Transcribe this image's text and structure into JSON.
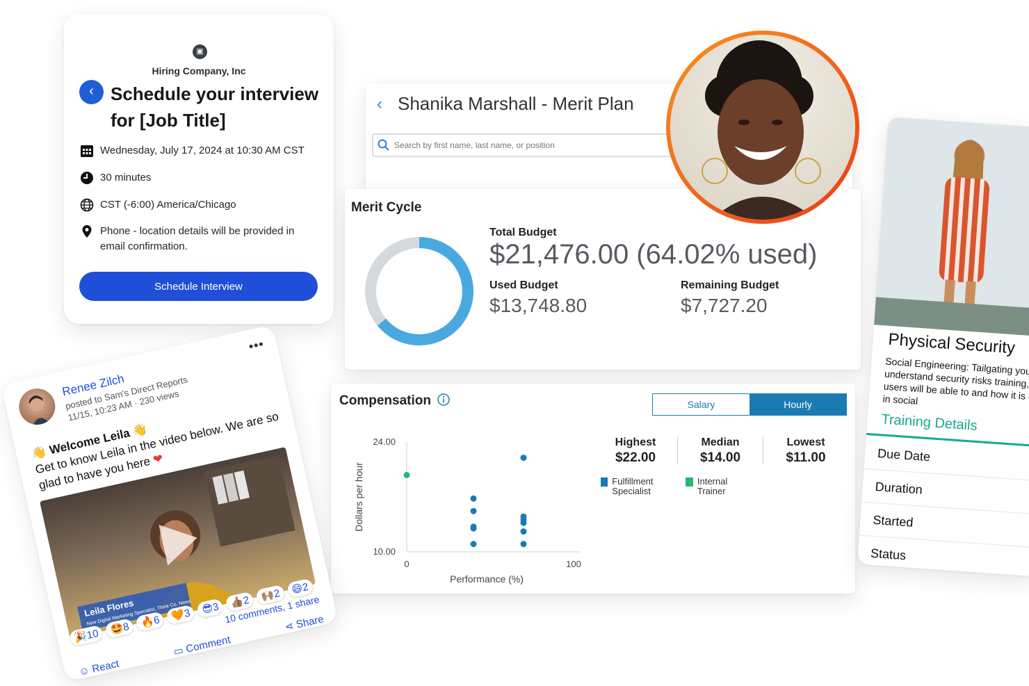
{
  "schedule": {
    "company": "Hiring Company, Inc",
    "title": "Schedule your interview for [Job Title]",
    "date": "Wednesday, July 17, 2024 at 10:30 AM CST",
    "duration": "30 minutes",
    "timezone": "CST (-6:00) America/Chicago",
    "location": "Phone - location details will be provided in email confirmation.",
    "button_label": "Schedule Interview"
  },
  "merit_plan": {
    "title": "Shanika Marshall - Merit Plan",
    "search_placeholder": "Search by first name, last name, or position"
  },
  "merit_cycle": {
    "heading": "Merit Cycle",
    "total_label": "Total Budget",
    "total_value": "$21,476.00 (64.02% used)",
    "used_label": "Used Budget",
    "used_value": "$13,748.80",
    "remaining_label": "Remaining Budget",
    "remaining_value": "$7,727.20",
    "used_fraction": 0.6402,
    "colors": {
      "used": "#4aa8e0",
      "remaining": "#d5d9dc"
    }
  },
  "compensation": {
    "heading": "Compensation",
    "tabs": [
      "Salary",
      "Hourly"
    ],
    "active_tab": "Hourly",
    "stats": [
      {
        "label": "Highest",
        "value": "$22.00"
      },
      {
        "label": "Median",
        "value": "$14.00"
      },
      {
        "label": "Lowest",
        "value": "$11.00"
      }
    ],
    "legend": [
      {
        "label": "Fulfillment Specialist",
        "color": "#1a7bb3"
      },
      {
        "label": "Internal Trainer",
        "color": "#2bb673"
      }
    ]
  },
  "chart_data": {
    "type": "scatter",
    "xlabel": "Performance (%)",
    "ylabel": "Dollars per hour",
    "xlim": [
      0,
      100
    ],
    "ylim": [
      10,
      24
    ],
    "x_ticks": [
      "0",
      "100"
    ],
    "y_ticks": [
      "24.00",
      "10.00"
    ],
    "grid": false,
    "series": [
      {
        "name": "Fulfillment Specialist",
        "color": "#1a7bb3",
        "points": [
          [
            40,
            16.8
          ],
          [
            40,
            15.2
          ],
          [
            40,
            13.2
          ],
          [
            40,
            13.0
          ],
          [
            40,
            11.0
          ],
          [
            70,
            22.0
          ],
          [
            70,
            14.5
          ],
          [
            70,
            14.1
          ],
          [
            70,
            13.7
          ],
          [
            70,
            12.6
          ],
          [
            70,
            11.0
          ]
        ]
      },
      {
        "name": "Internal Trainer",
        "color": "#2bb673",
        "points": [
          [
            0,
            19.8
          ]
        ]
      }
    ]
  },
  "post": {
    "author": "Renee Zilch",
    "meta_line1": "posted to Sam's Direct Reports",
    "meta_line2": "11/15, 10:23 AM · 230 views",
    "greeting": "Welcome Leila",
    "message": "Get to know Leila in the video below. We are so glad to have you here",
    "video_name": "Leila Flores",
    "video_subtitle": "New Digital Marketing Specialist, Think Co. News",
    "reactions": [
      {
        "emoji": "🎉",
        "count": "10"
      },
      {
        "emoji": "🤩",
        "count": "8"
      },
      {
        "emoji": "🔥",
        "count": "6"
      },
      {
        "emoji": "🧡",
        "count": "3"
      },
      {
        "emoji": "😎",
        "count": "3"
      },
      {
        "emoji": "👍🏽",
        "count": "2"
      },
      {
        "emoji": "🙌🏽",
        "count": "2"
      },
      {
        "emoji": "😄",
        "count": "2"
      }
    ],
    "comments_shares": "10 comments, 1 share",
    "actions": {
      "react": "React",
      "comment": "Comment",
      "share": "Share"
    }
  },
  "training": {
    "title": "Physical Security",
    "description": "Social Engineering: Tailgating you understand security risks training, users will be able to and how it is used in social",
    "link": "Training Details",
    "rows": [
      "Due Date",
      "Duration",
      "Started",
      "Status"
    ]
  }
}
